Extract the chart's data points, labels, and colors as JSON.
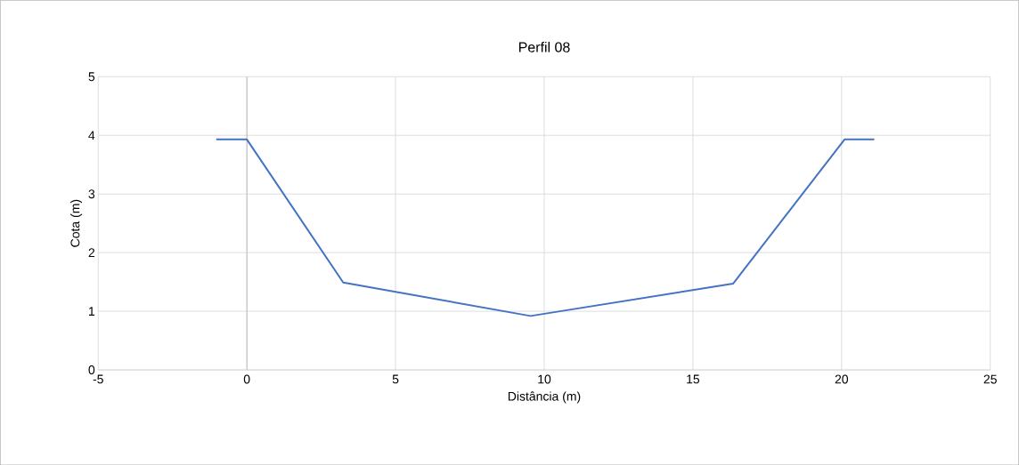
{
  "chart_data": {
    "type": "line",
    "title": "Perfil 08",
    "xlabel": "Distância (m)",
    "ylabel": "Cota (m)",
    "x": [
      -1.03,
      0,
      3.24,
      9.54,
      16.35,
      20.1,
      21.1
    ],
    "series": [
      {
        "color": "#4472c4",
        "values": [
          3.93,
          3.93,
          1.49,
          0.92,
          1.47,
          3.93,
          3.93
        ]
      }
    ],
    "xlim": [
      -5,
      25
    ],
    "xticks": [
      -5,
      0,
      5,
      10,
      15,
      20,
      25
    ],
    "ylim": [
      0,
      5
    ],
    "yticks": [
      0,
      1,
      2,
      3,
      4,
      5
    ],
    "ref_lines": [
      {
        "axis": "x",
        "value": 0,
        "color": "#bfbfbf"
      }
    ],
    "grid": true,
    "marker": "none",
    "line_style": "solid"
  }
}
